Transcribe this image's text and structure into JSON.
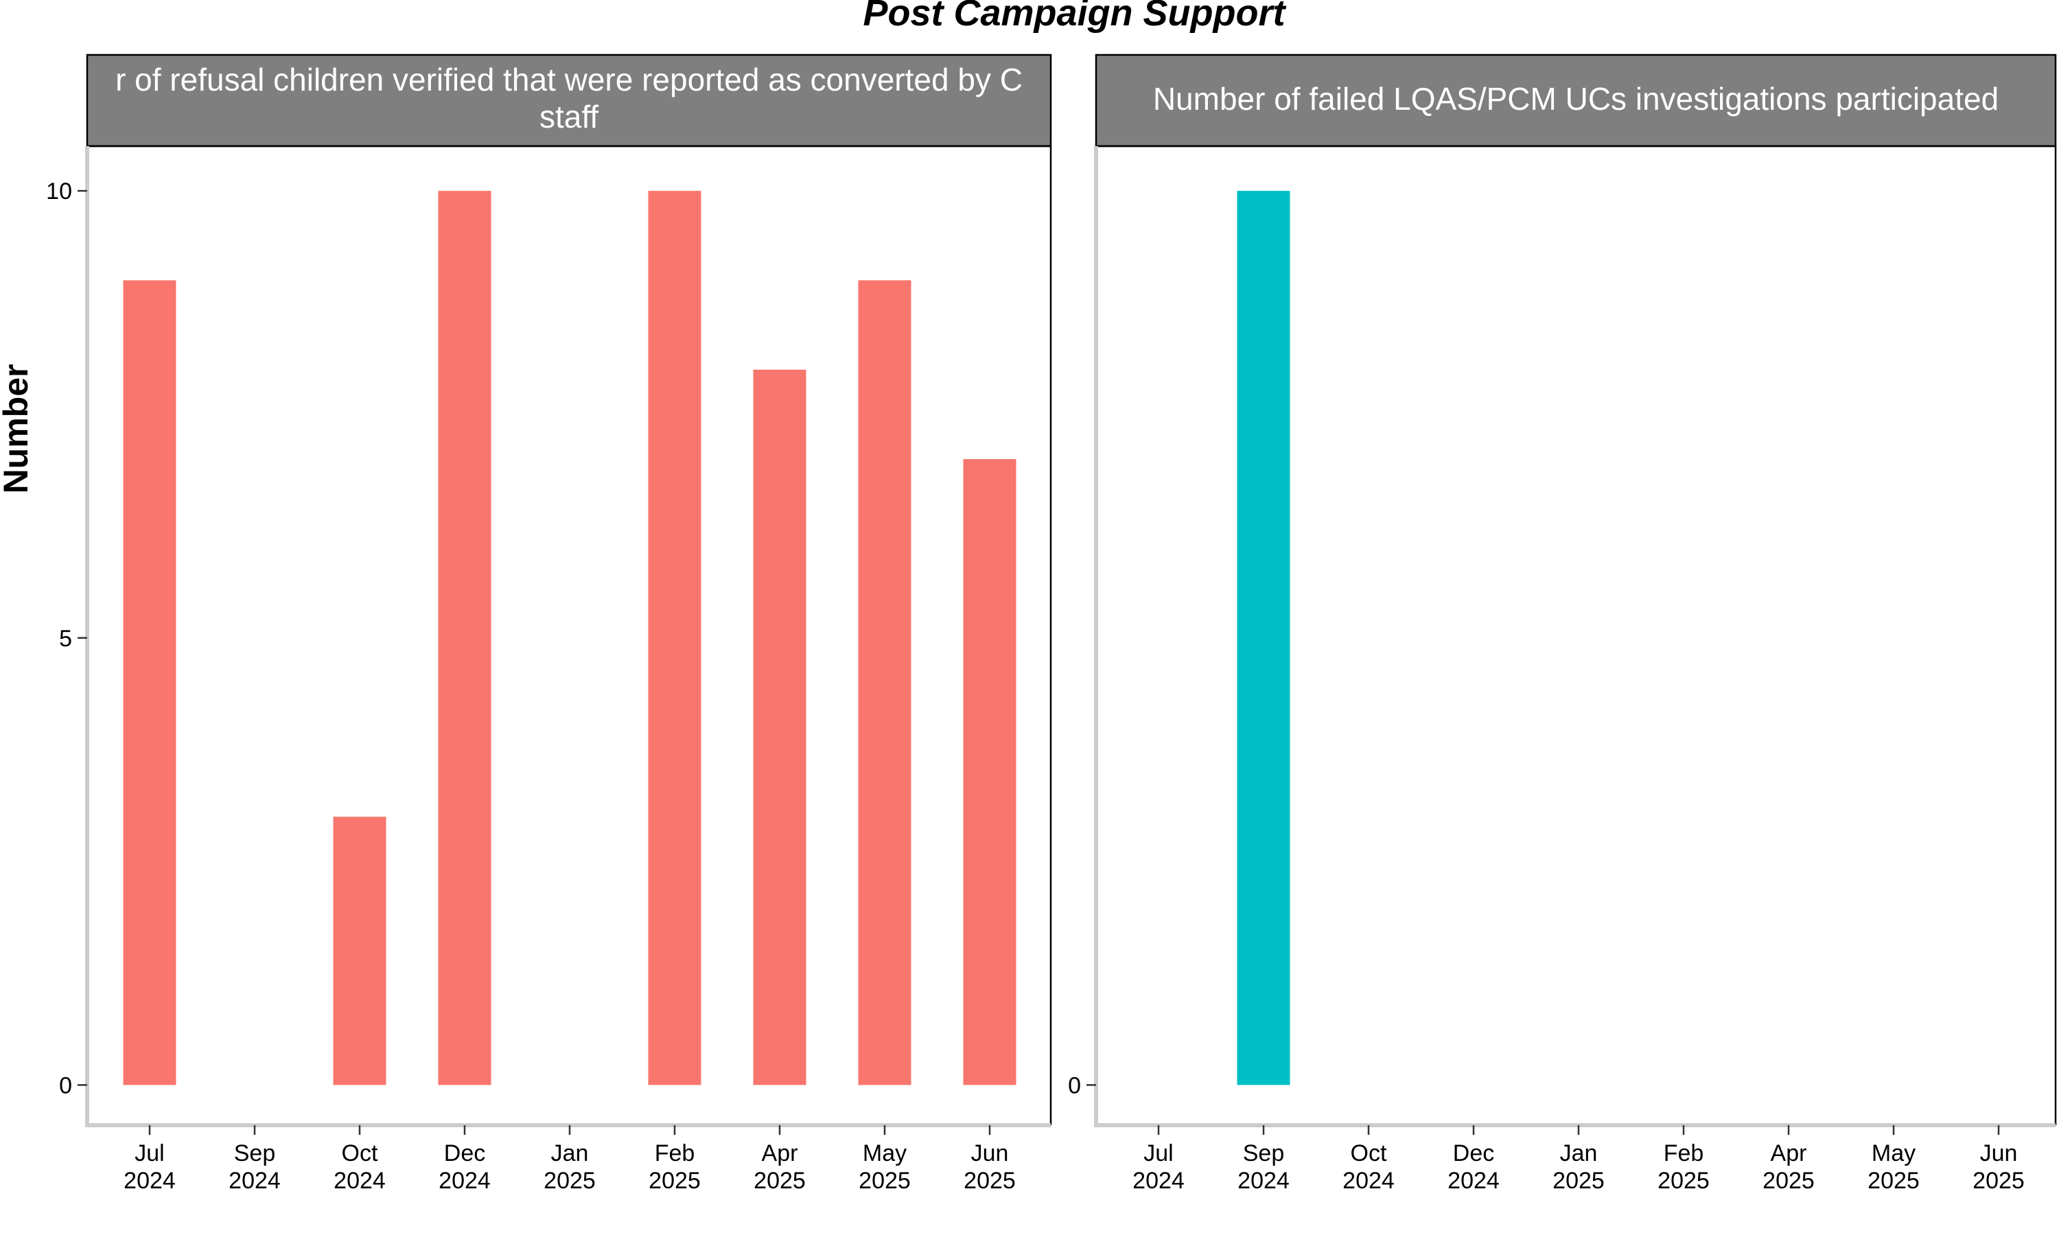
{
  "title": "Post Campaign Support",
  "chart_data": [
    {
      "type": "bar",
      "title": "Number of refusal children verified that were reported as converted by C staff",
      "strip_lines": [
        "r of refusal children verified that were reported as converted by C",
        "staff"
      ],
      "ylabel": "Number",
      "xlabel": "",
      "x_ticks": [
        [
          "Jul",
          "2024"
        ],
        [
          "Sep",
          "2024"
        ],
        [
          "Oct",
          "2024"
        ],
        [
          "Dec",
          "2024"
        ],
        [
          "Jan",
          "2025"
        ],
        [
          "Feb",
          "2025"
        ],
        [
          "Apr",
          "2025"
        ],
        [
          "May",
          "2025"
        ],
        [
          "Jun",
          "2025"
        ]
      ],
      "categories": [
        "Jul 2024",
        "Sep 2024",
        "Oct 2024",
        "Dec 2024",
        "Jan 2025",
        "Feb 2025",
        "Apr 2025",
        "May 2025",
        "Jun 2025"
      ],
      "values": [
        9,
        null,
        3,
        10,
        null,
        10,
        8,
        9,
        7
      ],
      "y_ticks": [
        0,
        5,
        10
      ],
      "ylim": [
        -0.45,
        10.5
      ],
      "color": "#F8766D",
      "legend": "none"
    },
    {
      "type": "bar",
      "title": "Number of failed LQAS/PCM UCs investigations participated",
      "strip_lines": [
        "Number of failed LQAS/PCM UCs investigations participated"
      ],
      "ylabel": "",
      "xlabel": "",
      "x_ticks": [
        [
          "Jul",
          "2024"
        ],
        [
          "Sep",
          "2024"
        ],
        [
          "Oct",
          "2024"
        ],
        [
          "Dec",
          "2024"
        ],
        [
          "Jan",
          "2025"
        ],
        [
          "Feb",
          "2025"
        ],
        [
          "Apr",
          "2025"
        ],
        [
          "May",
          "2025"
        ],
        [
          "Jun",
          "2025"
        ]
      ],
      "categories": [
        "Jul 2024",
        "Sep 2024",
        "Oct 2024",
        "Dec 2024",
        "Jan 2025",
        "Feb 2025",
        "Apr 2025",
        "May 2025",
        "Jun 2025"
      ],
      "values": [
        null,
        1,
        null,
        null,
        null,
        null,
        null,
        null,
        null
      ],
      "y_ticks": [
        0
      ],
      "ylim": [
        -0.045,
        1.05
      ],
      "color": "#00BFC4",
      "legend": "none"
    }
  ]
}
